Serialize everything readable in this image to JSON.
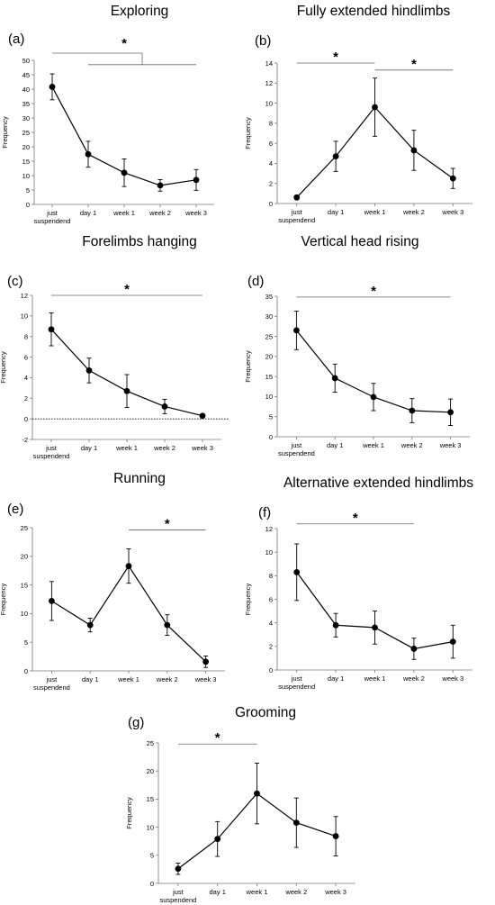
{
  "chart_data": [
    {
      "id": "a",
      "type": "line",
      "panel_label": "(a)",
      "title": "Exploring",
      "ylabel": "Frequency",
      "categories": [
        "just\nsuspendend",
        "day 1",
        "week 1",
        "week 2",
        "week 3"
      ],
      "ylim": [
        0,
        50
      ],
      "yticks": [
        0,
        5,
        10,
        15,
        20,
        25,
        30,
        35,
        40,
        45,
        50
      ],
      "values": [
        40.8,
        17.4,
        11.0,
        6.6,
        8.5
      ],
      "errors": [
        4.5,
        4.5,
        4.8,
        2.0,
        3.6
      ],
      "zero_line": false,
      "significance": [
        {
          "symbol": "*",
          "style": "bracket",
          "from": 0,
          "to": 4,
          "level": 52.5,
          "inner_from": 1,
          "inner_level": 48.5,
          "joint": 2.5
        }
      ]
    },
    {
      "id": "b",
      "type": "line",
      "panel_label": "(b)",
      "title": "Fully extended hindlimbs",
      "ylabel": "Frequency",
      "categories": [
        "just\nsuspendend",
        "day 1",
        "week 1",
        "week 2",
        "week 3"
      ],
      "ylim": [
        0,
        14
      ],
      "yticks": [
        0,
        2,
        4,
        6,
        8,
        10,
        12,
        14
      ],
      "values": [
        0.6,
        4.7,
        9.6,
        5.3,
        2.5
      ],
      "errors": [
        0.2,
        1.5,
        2.9,
        2.0,
        1.0
      ],
      "zero_line": false,
      "significance": [
        {
          "symbol": "*",
          "style": "line",
          "from": 0,
          "to": 2,
          "level": 14.0
        },
        {
          "symbol": "*",
          "style": "line",
          "from": 2,
          "to": 4,
          "level": 13.3
        }
      ]
    },
    {
      "id": "c",
      "type": "line",
      "panel_label": "(c)",
      "title": "Forelimbs hanging",
      "ylabel": "Frequency",
      "categories": [
        "just\nsuspendend",
        "day 1",
        "week 1",
        "week 2",
        "week 3"
      ],
      "ylim": [
        -2,
        12
      ],
      "yticks": [
        -2,
        0,
        2,
        4,
        6,
        8,
        10,
        12
      ],
      "values": [
        8.7,
        4.7,
        2.7,
        1.2,
        0.3
      ],
      "errors": [
        1.6,
        1.2,
        1.6,
        0.7,
        0.15
      ],
      "zero_line": true,
      "significance": [
        {
          "symbol": "*",
          "style": "line",
          "from": 0,
          "to": 4,
          "level": 12.0
        }
      ]
    },
    {
      "id": "d",
      "type": "line",
      "panel_label": "(d)",
      "title": "Vertical head rising",
      "ylabel": "Frequency",
      "categories": [
        "just\nsuspendend",
        "day 1",
        "week 1",
        "week 2",
        "week 3"
      ],
      "ylim": [
        0,
        35
      ],
      "yticks": [
        0,
        5,
        10,
        15,
        20,
        25,
        30,
        35
      ],
      "values": [
        26.5,
        14.6,
        9.9,
        6.5,
        6.1
      ],
      "errors": [
        4.8,
        3.5,
        3.4,
        3.0,
        3.3
      ],
      "zero_line": false,
      "significance": [
        {
          "symbol": "*",
          "style": "line",
          "from": 0,
          "to": 4,
          "level": 34.8
        }
      ]
    },
    {
      "id": "e",
      "type": "line",
      "panel_label": "(e)",
      "title": "Running",
      "ylabel": "Frequency",
      "categories": [
        "just\nsuspendend",
        "day 1",
        "week 1",
        "week 2",
        "week 3"
      ],
      "ylim": [
        0,
        25
      ],
      "yticks": [
        0,
        5,
        10,
        15,
        20,
        25
      ],
      "values": [
        12.2,
        8.0,
        18.3,
        8.0,
        1.6
      ],
      "errors": [
        3.4,
        1.2,
        3.0,
        1.8,
        1.0
      ],
      "zero_line": false,
      "significance": [
        {
          "symbol": "*",
          "style": "line",
          "from": 2,
          "to": 4,
          "level": 24.6
        }
      ]
    },
    {
      "id": "f",
      "type": "line",
      "panel_label": "(f)",
      "title": "Alternative extended hindlimbs",
      "ylabel": "Frequency",
      "categories": [
        "just\nsuspendend",
        "day 1",
        "week 1",
        "week 2",
        "week 3"
      ],
      "ylim": [
        0,
        12
      ],
      "yticks": [
        0,
        2,
        4,
        6,
        8,
        10,
        12
      ],
      "values": [
        8.3,
        3.8,
        3.6,
        1.8,
        2.4
      ],
      "errors": [
        2.4,
        1.0,
        1.4,
        0.9,
        1.4
      ],
      "zero_line": false,
      "significance": [
        {
          "symbol": "*",
          "style": "line",
          "from": 0,
          "to": 3,
          "level": 12.4
        }
      ]
    },
    {
      "id": "g",
      "type": "line",
      "panel_label": "(g)",
      "title": "Grooming",
      "ylabel": "Frequency",
      "categories": [
        "just\nsuspendend",
        "day 1",
        "week 1",
        "week 2",
        "week 3"
      ],
      "ylim": [
        0,
        25
      ],
      "yticks": [
        0,
        5,
        10,
        15,
        20,
        25
      ],
      "values": [
        2.6,
        7.9,
        16.0,
        10.8,
        8.4
      ],
      "errors": [
        1.0,
        3.1,
        5.4,
        4.4,
        3.5
      ],
      "zero_line": false,
      "significance": [
        {
          "symbol": "*",
          "style": "line",
          "from": 0,
          "to": 2,
          "level": 24.8
        }
      ]
    }
  ]
}
